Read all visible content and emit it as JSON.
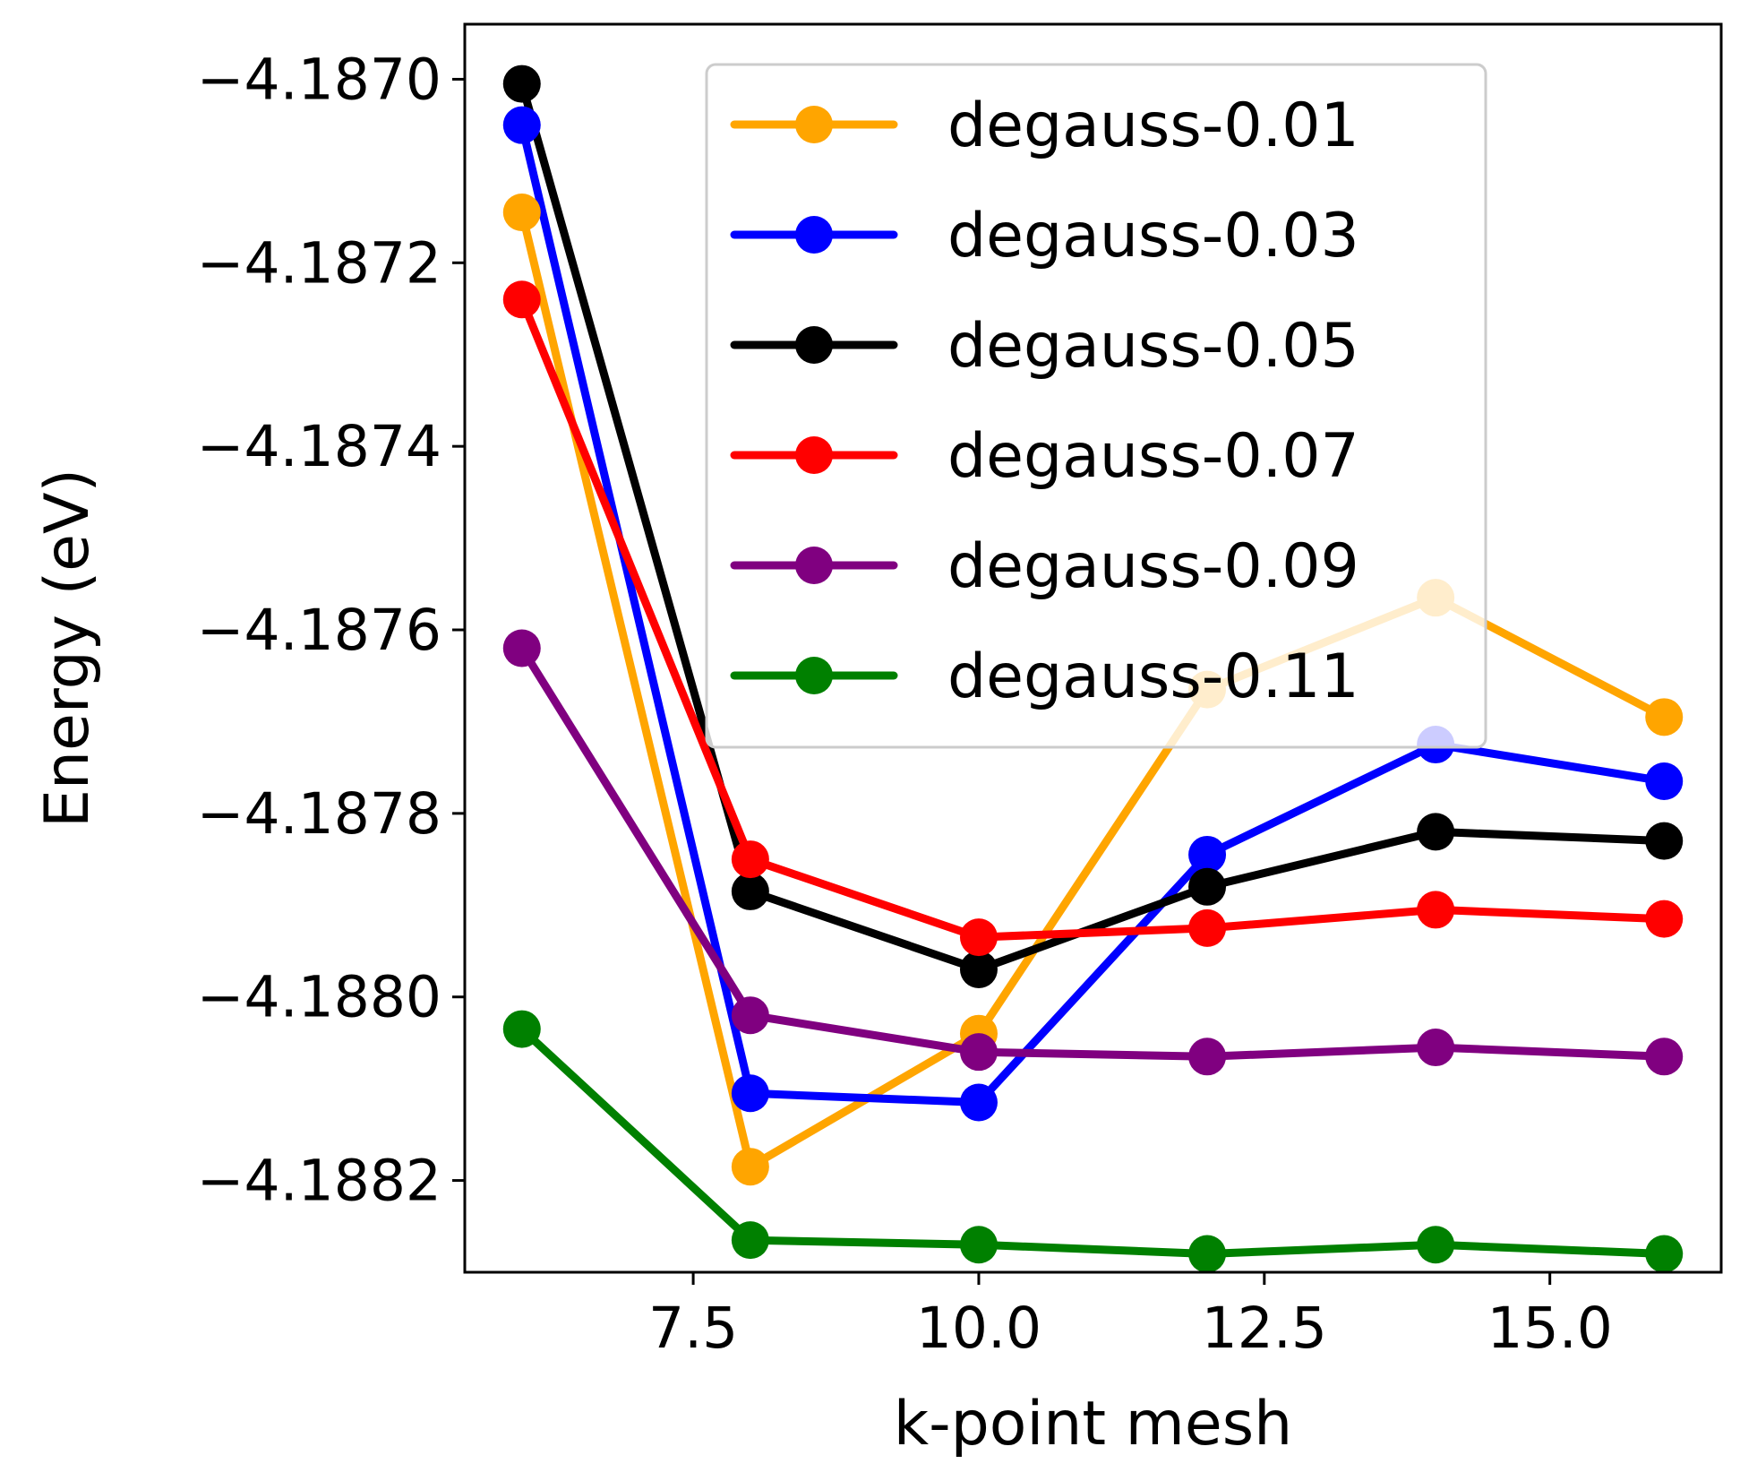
{
  "chart_data": {
    "type": "line",
    "title": "",
    "xlabel": "k-point mesh",
    "ylabel": "Energy (eV)",
    "x": [
      6,
      8,
      10,
      12,
      14,
      16
    ],
    "xlim": [
      5.5,
      16.5
    ],
    "ylim": [
      -4.1883,
      -4.18694
    ],
    "x_ticks": [
      7.5,
      10.0,
      12.5,
      15.0
    ],
    "x_tick_labels": [
      "7.5",
      "10.0",
      "12.5",
      "15.0"
    ],
    "y_ticks": [
      -4.187,
      -4.1872,
      -4.1874,
      -4.1876,
      -4.1878,
      -4.188,
      -4.1882
    ],
    "y_tick_labels": [
      "−4.1870",
      "−4.1872",
      "−4.1874",
      "−4.1876",
      "−4.1878",
      "−4.1880",
      "−4.1882"
    ],
    "grid": false,
    "legend_position": "top-right",
    "series": [
      {
        "name": "degauss-0.01",
        "color": "#ffa500",
        "values": [
          -4.187145,
          -4.188185,
          -4.18804,
          -4.187665,
          -4.187565,
          -4.187695
        ]
      },
      {
        "name": "degauss-0.03",
        "color": "#0000ff",
        "values": [
          -4.18705,
          -4.188105,
          -4.188115,
          -4.187845,
          -4.187725,
          -4.187765
        ]
      },
      {
        "name": "degauss-0.05",
        "color": "#000000",
        "values": [
          -4.187005,
          -4.187885,
          -4.18797,
          -4.18788,
          -4.18782,
          -4.18783
        ]
      },
      {
        "name": "degauss-0.07",
        "color": "#ff0000",
        "values": [
          -4.18724,
          -4.18785,
          -4.187935,
          -4.187925,
          -4.187905,
          -4.187915
        ]
      },
      {
        "name": "degauss-0.09",
        "color": "#800080",
        "values": [
          -4.18762,
          -4.18802,
          -4.18806,
          -4.188065,
          -4.188055,
          -4.188065
        ]
      },
      {
        "name": "degauss-0.11",
        "color": "#008000",
        "values": [
          -4.188035,
          -4.188265,
          -4.18827,
          -4.18828,
          -4.18827,
          -4.18828
        ]
      }
    ]
  }
}
